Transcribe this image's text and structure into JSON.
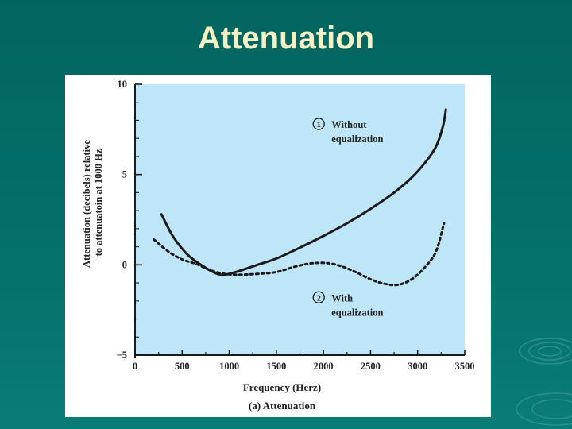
{
  "slide": {
    "title": "Attenuation"
  },
  "colors": {
    "background": "#05706a",
    "title": "#f3f1c6",
    "plot_area": "#bfe5f8",
    "line": "#1a1a1a"
  },
  "chart_data": {
    "type": "line",
    "caption": "(a) Attenuation",
    "xlabel": "Frequency (Herz)",
    "ylabel_lines": [
      "Attenuation (decibels) relative",
      "to attenuatoin at 1000 Hz"
    ],
    "xlim": [
      0,
      3500
    ],
    "ylim": [
      -5,
      10
    ],
    "x_ticks": [
      0,
      500,
      1000,
      1500,
      2000,
      2500,
      3000,
      3500
    ],
    "x_tick_labels": [
      "0",
      "500",
      "1000",
      "1500",
      "2000",
      "2500",
      "3000",
      "3500"
    ],
    "y_ticks": [
      -5,
      0,
      5,
      10
    ],
    "y_tick_labels": [
      "−5",
      "0",
      "5",
      "10"
    ],
    "series": [
      {
        "marker": "1",
        "label_lines": [
          "Without",
          "equalization"
        ],
        "style": "solid",
        "points": [
          [
            280,
            2.8
          ],
          [
            400,
            1.6
          ],
          [
            550,
            0.6
          ],
          [
            700,
            0.0
          ],
          [
            850,
            -0.45
          ],
          [
            950,
            -0.55
          ],
          [
            1100,
            -0.35
          ],
          [
            1300,
            0.0
          ],
          [
            1500,
            0.35
          ],
          [
            1750,
            0.95
          ],
          [
            2000,
            1.6
          ],
          [
            2250,
            2.3
          ],
          [
            2500,
            3.1
          ],
          [
            2750,
            4.0
          ],
          [
            2950,
            4.9
          ],
          [
            3100,
            5.8
          ],
          [
            3200,
            6.6
          ],
          [
            3270,
            7.7
          ],
          [
            3300,
            8.6
          ]
        ]
      },
      {
        "marker": "2",
        "label_lines": [
          "With",
          "equalization"
        ],
        "style": "dotted",
        "points": [
          [
            200,
            1.4
          ],
          [
            350,
            0.75
          ],
          [
            500,
            0.3
          ],
          [
            650,
            0.05
          ],
          [
            800,
            -0.3
          ],
          [
            950,
            -0.5
          ],
          [
            1100,
            -0.55
          ],
          [
            1300,
            -0.5
          ],
          [
            1500,
            -0.4
          ],
          [
            1700,
            -0.1
          ],
          [
            1900,
            0.1
          ],
          [
            2100,
            0.05
          ],
          [
            2300,
            -0.3
          ],
          [
            2500,
            -0.8
          ],
          [
            2650,
            -1.05
          ],
          [
            2800,
            -1.1
          ],
          [
            2950,
            -0.75
          ],
          [
            3100,
            0.0
          ],
          [
            3200,
            0.8
          ],
          [
            3280,
            2.3
          ]
        ]
      }
    ]
  }
}
